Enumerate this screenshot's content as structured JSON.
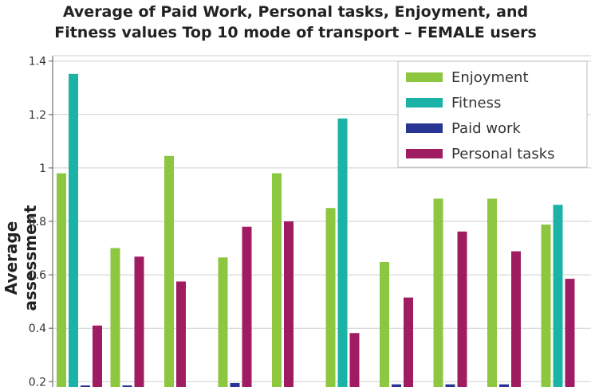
{
  "chart_data": {
    "type": "bar",
    "title_line1": "Average of Paid Work, Personal tasks, Enjoyment, and",
    "title_line2": "Fitness values Top 10 mode of transport – FEMALE users",
    "ylabel": "Average assessment",
    "xlabel": "",
    "ylim": [
      0.18,
      1.42
    ],
    "yticks": [
      "0.2",
      "0.4",
      "0.6",
      "0.8",
      "1",
      "1.2",
      "1.4"
    ],
    "grid": true,
    "legend_position": "top-right",
    "categories": [
      "",
      "",
      "",
      "",
      "",
      "",
      "",
      "",
      "",
      ""
    ],
    "series": [
      {
        "name": "Enjoyment",
        "color": "#8dc63f",
        "values": [
          0.98,
          0.7,
          1.045,
          0.665,
          0.98,
          0.85,
          0.648,
          0.885,
          0.885,
          0.788
        ]
      },
      {
        "name": "Fitness",
        "color": "#1ab3a6",
        "values": [
          1.352,
          null,
          null,
          null,
          null,
          1.185,
          null,
          null,
          null,
          0.862
        ]
      },
      {
        "name": "Paid work",
        "color": "#283593",
        "values": [
          0.185,
          0.185,
          null,
          0.195,
          null,
          null,
          0.19,
          0.19,
          0.19,
          null
        ]
      },
      {
        "name": "Personal tasks",
        "color": "#a01c62",
        "values": [
          0.41,
          0.668,
          0.575,
          0.78,
          0.8,
          0.382,
          0.515,
          0.762,
          0.688,
          0.585
        ]
      }
    ]
  }
}
